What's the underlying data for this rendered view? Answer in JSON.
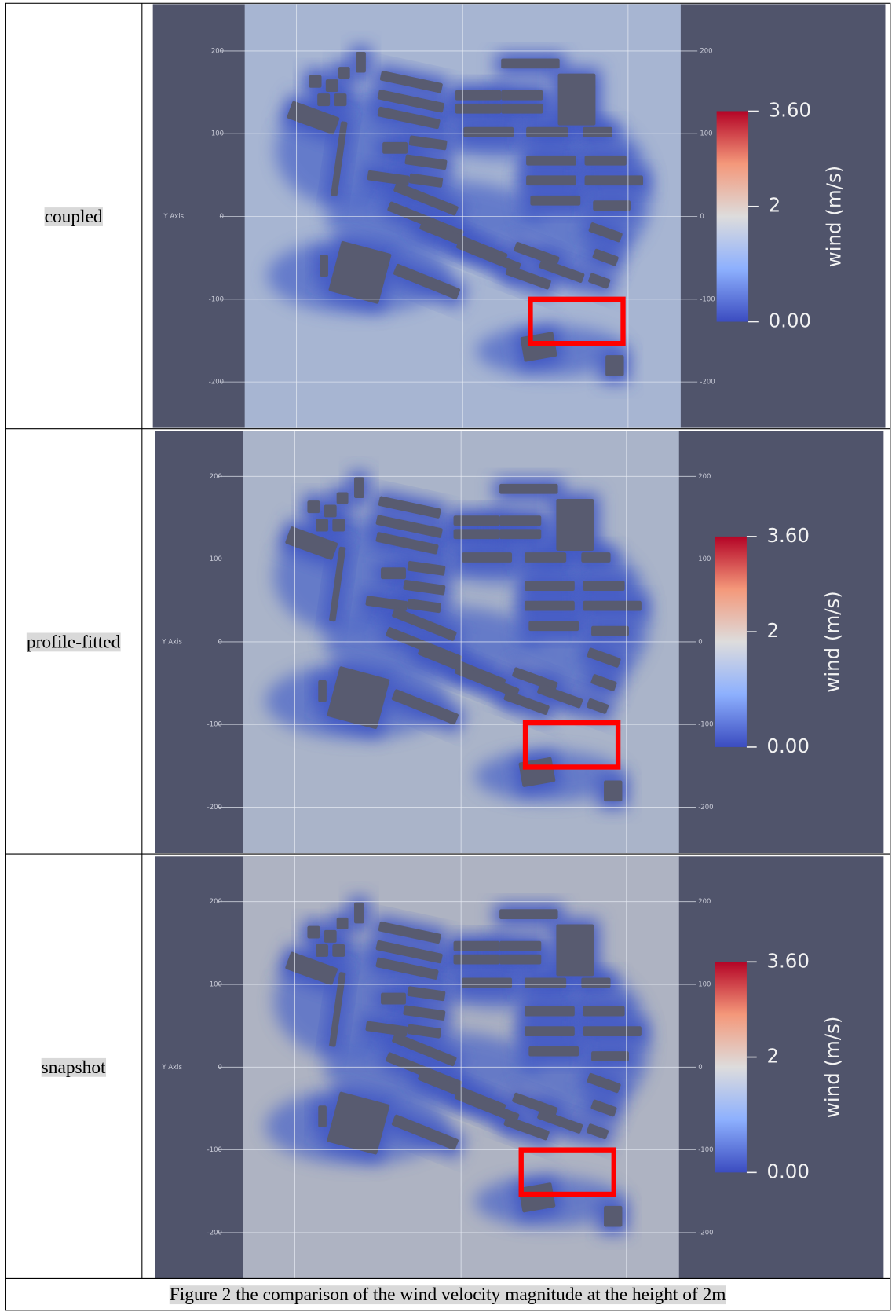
{
  "table": {
    "rows": [
      {
        "label": "coupled",
        "panel": {
          "axis_label": "Y Axis",
          "left_ticks": [
            "200",
            "100",
            "0",
            "-100",
            "-200"
          ],
          "right_ticks": [
            "200",
            "100",
            "0",
            "-100",
            "-200"
          ],
          "colorbar": {
            "max": "3.60",
            "mid": "2",
            "min": "0.00",
            "title": "wind (m/s)"
          }
        }
      },
      {
        "label": "profile-fitted",
        "panel": {
          "axis_label": "Y Axis",
          "left_ticks": [
            "200",
            "100",
            "0",
            "-100",
            "-200"
          ],
          "right_ticks": [
            "200",
            "100",
            "0",
            "-100",
            "-200"
          ],
          "colorbar": {
            "max": "3.60",
            "mid": "2",
            "min": "0.00",
            "title": "wind (m/s)"
          }
        }
      },
      {
        "label": "snapshot",
        "panel": {
          "axis_label": "Y Axis",
          "left_ticks": [
            "200",
            "100",
            "0",
            "-100",
            "-200"
          ],
          "right_ticks": [
            "200",
            "100",
            "0",
            "-100",
            "-200"
          ],
          "colorbar": {
            "max": "3.60",
            "mid": "2",
            "min": "0.00",
            "title": "wind (m/s)"
          }
        }
      }
    ]
  },
  "caption": "Figure 2 the comparison of the wind velocity magnitude at the height of 2m"
}
